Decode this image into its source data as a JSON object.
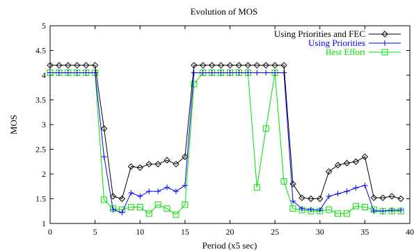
{
  "chart_data": {
    "type": "line",
    "title": "Evolution of MOS",
    "xlabel": "Period (x5 sec)",
    "ylabel": "MOS",
    "xlim": [
      0,
      40
    ],
    "ylim": [
      1,
      5
    ],
    "xticks": [
      0,
      5,
      10,
      15,
      20,
      25,
      30,
      35,
      40
    ],
    "yticks": [
      1,
      1.5,
      2,
      2.5,
      3,
      3.5,
      4,
      4.5,
      5
    ],
    "xtick_labels": [
      "0",
      "5",
      "10",
      "15",
      "20",
      "25",
      "30",
      "35",
      "40"
    ],
    "ytick_labels": [
      "1",
      "1.5",
      "2",
      "2.5",
      "3",
      "3.5",
      "4",
      "4.5",
      "5"
    ],
    "grid": false,
    "legend_position": "top-right",
    "x": [
      0,
      1,
      2,
      3,
      4,
      5,
      6,
      7,
      8,
      9,
      10,
      11,
      12,
      13,
      14,
      15,
      16,
      17,
      18,
      19,
      20,
      21,
      22,
      23,
      24,
      25,
      26,
      27,
      28,
      29,
      30,
      31,
      32,
      33,
      34,
      35,
      36,
      37,
      38,
      39
    ],
    "series": [
      {
        "name": "Using Priorities and FEC",
        "color": "#000000",
        "marker": "diamond",
        "values": [
          4.2,
          4.2,
          4.2,
          4.2,
          4.2,
          4.2,
          2.92,
          1.55,
          1.5,
          2.15,
          2.13,
          2.2,
          2.2,
          2.28,
          2.2,
          2.35,
          4.2,
          4.2,
          4.2,
          4.2,
          4.2,
          4.2,
          4.2,
          4.2,
          4.2,
          4.2,
          4.2,
          1.8,
          1.52,
          1.5,
          1.5,
          2.05,
          2.18,
          2.22,
          2.25,
          2.35,
          1.52,
          1.52,
          1.55,
          1.5
        ]
      },
      {
        "name": "Using Priorities",
        "color": "#0000ff",
        "marker": "plus",
        "values": [
          4.05,
          4.05,
          4.05,
          4.05,
          4.05,
          4.05,
          2.35,
          1.28,
          1.22,
          1.62,
          1.55,
          1.65,
          1.65,
          1.73,
          1.65,
          1.77,
          4.05,
          4.05,
          4.05,
          4.05,
          4.05,
          4.05,
          4.05,
          4.05,
          4.05,
          4.05,
          4.05,
          1.45,
          1.3,
          1.28,
          1.27,
          1.55,
          1.6,
          1.65,
          1.72,
          1.77,
          1.25,
          1.25,
          1.27,
          1.27
        ]
      },
      {
        "name": "Best Effort",
        "color": "#00e000",
        "marker": "square",
        "values": [
          4.05,
          4.05,
          4.05,
          4.05,
          4.05,
          4.05,
          1.48,
          1.3,
          1.28,
          1.33,
          1.33,
          1.2,
          1.38,
          1.3,
          1.18,
          1.38,
          3.82,
          4.05,
          4.05,
          4.05,
          4.05,
          4.05,
          4.05,
          1.73,
          2.92,
          4.05,
          1.85,
          1.3,
          1.27,
          1.25,
          1.25,
          1.28,
          1.2,
          1.2,
          1.35,
          1.33,
          1.28,
          1.25,
          1.25,
          1.25
        ]
      }
    ]
  }
}
